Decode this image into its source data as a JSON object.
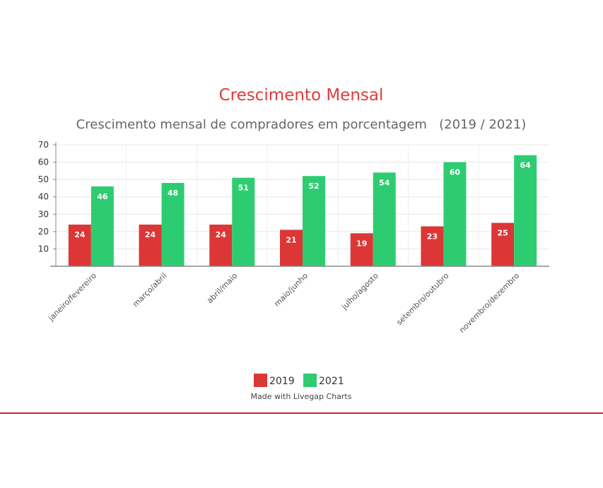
{
  "chart_data": {
    "type": "bar",
    "title": "Crescimento Mensal",
    "subtitle": "Crescimento mensal de compradores em porcentagem   (2019 / 2021)",
    "xlabel": "",
    "ylabel": "",
    "ylim": [
      0,
      70
    ],
    "yticks": [
      10,
      20,
      30,
      40,
      50,
      60,
      70
    ],
    "grid": true,
    "legend_position": "bottom",
    "categories": [
      "janeiro/fevereiro",
      "março/abril",
      "abril/maio",
      "maio/junho",
      "julho/agosto",
      "setembro/outubro",
      "novembro/dezembro"
    ],
    "series": [
      {
        "name": "2019",
        "color": "#dc3636",
        "values": [
          24,
          24,
          24,
          21,
          19,
          23,
          25
        ]
      },
      {
        "name": "2021",
        "color": "#2ecc71",
        "values": [
          46,
          48,
          51,
          52,
          54,
          60,
          64
        ]
      }
    ],
    "credit": "Made with Livegap Charts"
  },
  "colors": {
    "title": "#e03b3b",
    "subtitle": "#666666",
    "rule": "#c62828"
  }
}
